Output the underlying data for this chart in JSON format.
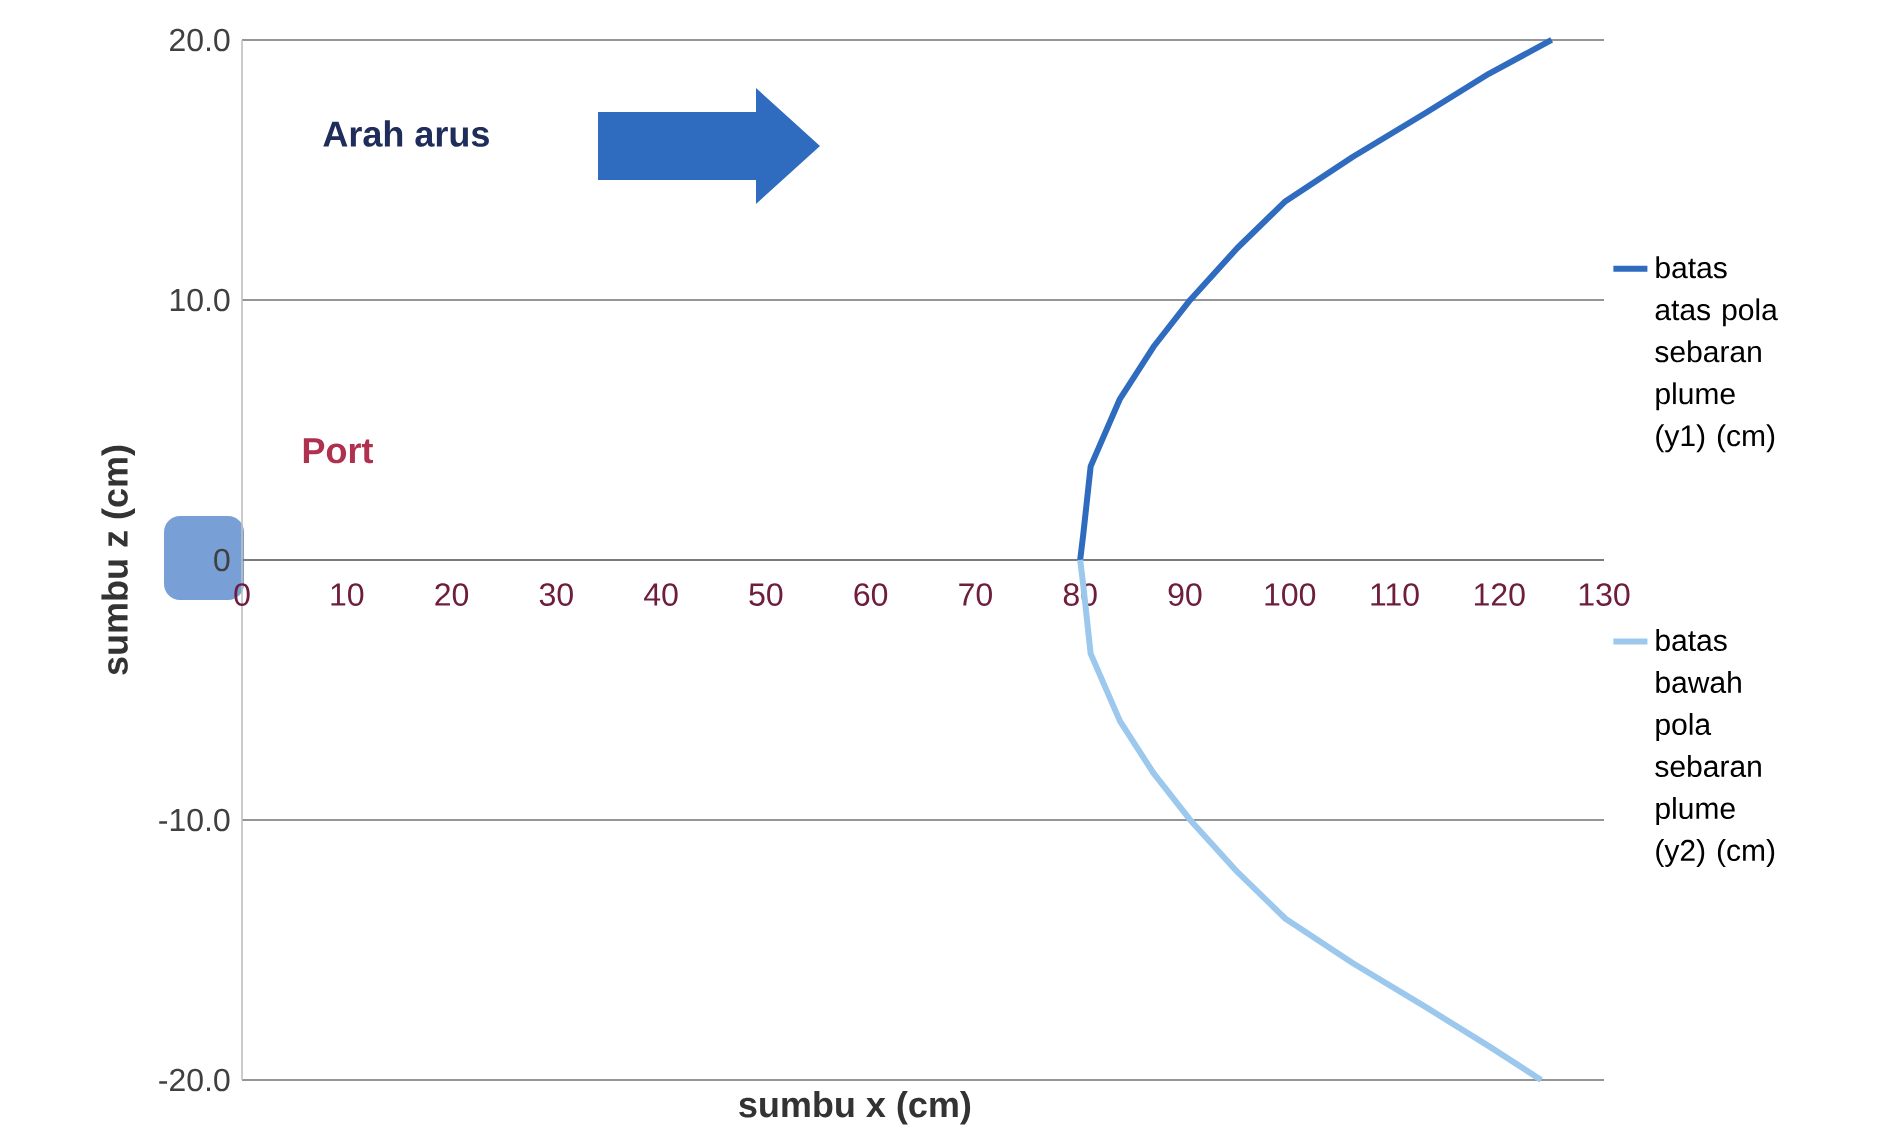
{
  "chart_data": {
    "type": "line",
    "xlabel": "sumbu x (cm)",
    "ylabel": "sumbu z (cm)",
    "xlim": [
      0,
      130
    ],
    "xticks": [
      0,
      10,
      20,
      30,
      40,
      50,
      60,
      70,
      80,
      90,
      100,
      110,
      120,
      130
    ],
    "ylim": [
      -20,
      20
    ],
    "yticks": [
      {
        "value": -20,
        "label": "-20.0"
      },
      {
        "value": -10,
        "label": "-10.0"
      },
      0,
      {
        "value": 10,
        "label": "10.0"
      },
      {
        "value": 20,
        "label": "20.0"
      }
    ],
    "grid": "y",
    "legend": "right",
    "annotations": [
      "Arah arus",
      "Port"
    ],
    "series": [
      {
        "name": "batas atas pola sebaran plume (y1) (cm)",
        "color": "#2f6bbf",
        "x": [
          80,
          80.3,
          81,
          83.8,
          87,
          90.5,
          95,
          99.6,
          106,
          113,
          119,
          125
        ],
        "values": [
          0,
          1,
          3.6,
          6.2,
          8.2,
          10,
          12,
          13.8,
          15.5,
          17.2,
          18.7,
          20
        ]
      },
      {
        "name": "batas bawah pola sebaran plume (y2) (cm)",
        "color": "#9dc8ee",
        "x": [
          80,
          80.3,
          81,
          83.8,
          87,
          90.5,
          95,
          99.6,
          106,
          113,
          119,
          124
        ],
        "values": [
          0,
          -1,
          -3.6,
          -6.2,
          -8.2,
          -10,
          -12,
          -13.8,
          -15.5,
          -17.2,
          -18.7,
          -20
        ]
      }
    ]
  }
}
